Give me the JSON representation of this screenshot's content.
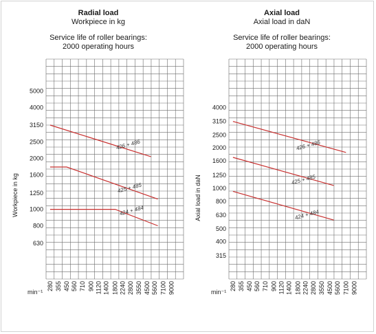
{
  "chart_data": [
    {
      "type": "line",
      "title": "Radial load",
      "subtitle": "Workpiece in kg",
      "note_line1": "Service life of roller bearings:",
      "note_line2": "2000 operating hours",
      "ylabel": "Workpiece in kg",
      "x_unit": "min⁻¹",
      "scale": "log",
      "grid": true,
      "x_ticks": [
        280,
        355,
        450,
        560,
        710,
        900,
        1120,
        1400,
        1800,
        2240,
        2800,
        3550,
        4500,
        5600,
        7100,
        9000
      ],
      "y_ticks": [
        630,
        800,
        1000,
        1250,
        1600,
        2000,
        2500,
        3150,
        4000,
        5000
      ],
      "series_color": "#c8302f",
      "series": [
        {
          "name": "426 + 486",
          "x": [
            280,
            5000
          ],
          "y": [
            3150,
            2050
          ]
        },
        {
          "name": "425 + 485",
          "x": [
            280,
            450,
            6100
          ],
          "y": [
            1780,
            1780,
            1150
          ]
        },
        {
          "name": "424 + 484",
          "x": [
            280,
            1800,
            6100
          ],
          "y": [
            1000,
            1000,
            800
          ]
        }
      ]
    },
    {
      "type": "line",
      "title": "Axial load",
      "subtitle": "Axial load in daN",
      "note_line1": "Service life of roller bearings:",
      "note_line2": "2000 operating hours",
      "ylabel": "Axial load in daN",
      "x_unit": "min⁻¹",
      "scale": "log",
      "grid": true,
      "x_ticks": [
        280,
        355,
        450,
        560,
        710,
        900,
        1120,
        1400,
        1800,
        2240,
        2800,
        3550,
        4500,
        5600,
        7100,
        9000
      ],
      "y_ticks": [
        315,
        400,
        500,
        630,
        800,
        1000,
        1250,
        1600,
        2000,
        2500,
        3150,
        4000
      ],
      "series_color": "#c8302f",
      "series": [
        {
          "name": "426 + 486",
          "x": [
            280,
            7100
          ],
          "y": [
            3150,
            1850
          ]
        },
        {
          "name": "425 + 485",
          "x": [
            280,
            5000
          ],
          "y": [
            1700,
            1050
          ]
        },
        {
          "name": "424 + 484",
          "x": [
            280,
            5000
          ],
          "y": [
            950,
            580
          ]
        }
      ]
    }
  ]
}
